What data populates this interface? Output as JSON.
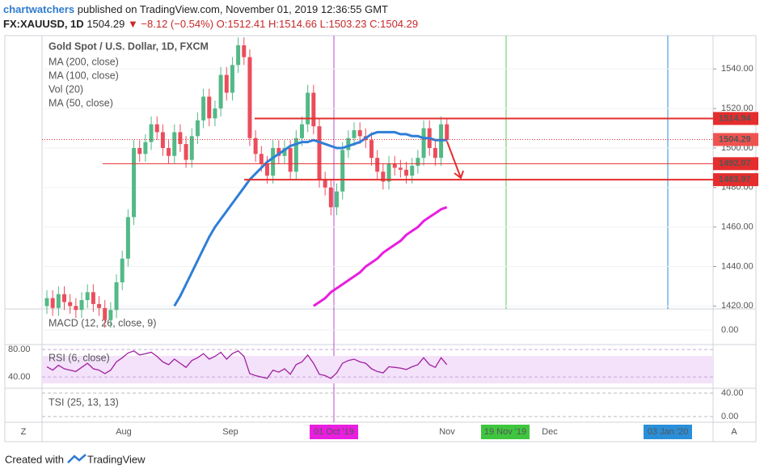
{
  "header": {
    "author": "chartwatchers",
    "published": "published on TradingView.com, November 01, 2019 12:36:55 GMT",
    "symbol": "FX:XAUUSD, 1D",
    "last": "1504.29",
    "change": "▼ −8.12 (−0.54%)",
    "ohlc": [
      "O:1512.41",
      "H:1514.66",
      "L:1503.23",
      "C:1504.29"
    ]
  },
  "legend": [
    "Gold Spot / U.S. Dollar, 1D, FXCM",
    "MA (200, close)",
    "MA (100, close)",
    "Vol (20)",
    "MA (50, close)"
  ],
  "chart_data": {
    "type": "candlestick",
    "open": [
      1420,
      1424,
      1419,
      1426,
      1422,
      1420,
      1418,
      1423,
      1427,
      1421,
      1419,
      1413,
      1418,
      1432,
      1444,
      1465,
      1500,
      1497,
      1503,
      1512,
      1508,
      1500,
      1496,
      1508,
      1502,
      1494,
      1506,
      1514,
      1526,
      1515,
      1520,
      1537,
      1528,
      1542,
      1552,
      1546,
      1505,
      1497,
      1492,
      1486,
      1500,
      1496,
      1500,
      1488,
      1505,
      1512,
      1528,
      1511,
      1484,
      1480,
      1470,
      1478,
      1499,
      1505,
      1509,
      1506,
      1504,
      1495,
      1488,
      1483,
      1492,
      1490,
      1489,
      1486,
      1491,
      1495,
      1510,
      1500,
      1495,
      1512
    ],
    "high": [
      1428,
      1428,
      1430,
      1430,
      1426,
      1424,
      1427,
      1431,
      1431,
      1425,
      1423,
      1422,
      1436,
      1448,
      1469,
      1504,
      1504,
      1507,
      1516,
      1516,
      1512,
      1504,
      1512,
      1512,
      1506,
      1510,
      1518,
      1530,
      1530,
      1524,
      1541,
      1541,
      1546,
      1556,
      1556,
      1550,
      1509,
      1501,
      1496,
      1504,
      1504,
      1504,
      1504,
      1509,
      1516,
      1532,
      1532,
      1515,
      1488,
      1484,
      1482,
      1503,
      1509,
      1513,
      1513,
      1510,
      1508,
      1499,
      1492,
      1496,
      1496,
      1494,
      1493,
      1495,
      1499,
      1514,
      1514,
      1504,
      1516,
      1515
    ],
    "low": [
      1416,
      1415,
      1415,
      1418,
      1416,
      1414,
      1414,
      1419,
      1417,
      1415,
      1409,
      1409,
      1414,
      1428,
      1440,
      1461,
      1493,
      1493,
      1499,
      1504,
      1496,
      1492,
      1492,
      1498,
      1490,
      1490,
      1502,
      1510,
      1511,
      1511,
      1516,
      1524,
      1524,
      1538,
      1542,
      1501,
      1493,
      1488,
      1482,
      1482,
      1492,
      1492,
      1484,
      1484,
      1501,
      1508,
      1507,
      1480,
      1476,
      1466,
      1466,
      1474,
      1495,
      1501,
      1502,
      1500,
      1491,
      1484,
      1479,
      1479,
      1486,
      1485,
      1482,
      1482,
      1487,
      1491,
      1496,
      1491,
      1491,
      1503
    ],
    "close": [
      1424,
      1419,
      1426,
      1422,
      1420,
      1418,
      1423,
      1427,
      1421,
      1419,
      1413,
      1418,
      1432,
      1444,
      1465,
      1500,
      1497,
      1503,
      1512,
      1508,
      1500,
      1496,
      1508,
      1502,
      1494,
      1506,
      1514,
      1526,
      1515,
      1520,
      1537,
      1528,
      1542,
      1552,
      1546,
      1505,
      1497,
      1492,
      1486,
      1500,
      1496,
      1500,
      1488,
      1505,
      1512,
      1528,
      1511,
      1484,
      1480,
      1470,
      1478,
      1499,
      1505,
      1509,
      1506,
      1504,
      1495,
      1488,
      1483,
      1492,
      1490,
      1489,
      1486,
      1491,
      1495,
      1510,
      1500,
      1495,
      1512,
      1504
    ],
    "up_color": "#53b987",
    "down_color": "#eb4d5c",
    "series": [
      {
        "name": "MA (50, close)",
        "color": "#2f7ed8",
        "values": [
          null,
          null,
          null,
          null,
          null,
          null,
          null,
          null,
          null,
          null,
          null,
          null,
          null,
          null,
          null,
          null,
          null,
          null,
          null,
          null,
          null,
          null,
          1420,
          1425,
          1431,
          1437,
          1443,
          1449,
          1455,
          1460,
          1464,
          1468,
          1472,
          1476,
          1480,
          1484,
          1487,
          1490,
          1493,
          1495,
          1497,
          1499,
          1501,
          1502,
          1503,
          1503,
          1504,
          1503,
          1502,
          1501,
          1500,
          1500,
          1501,
          1502,
          1503,
          1505,
          1507,
          1508,
          1508,
          1508,
          1508,
          1507,
          1507,
          1506,
          1506,
          1505,
          1505,
          1504,
          1504,
          1504
        ]
      },
      {
        "name": "MA (100, close)",
        "color": "#e91ee0",
        "values": [
          null,
          null,
          null,
          null,
          null,
          null,
          null,
          null,
          null,
          null,
          null,
          null,
          null,
          null,
          null,
          null,
          null,
          null,
          null,
          null,
          null,
          null,
          null,
          null,
          null,
          null,
          null,
          null,
          null,
          null,
          null,
          null,
          null,
          null,
          null,
          null,
          null,
          null,
          null,
          null,
          null,
          null,
          null,
          null,
          null,
          null,
          1420,
          1422,
          1424,
          1427,
          1429,
          1431,
          1433,
          1435,
          1437,
          1440,
          1442,
          1444,
          1447,
          1449,
          1451,
          1453,
          1456,
          1458,
          1460,
          1463,
          1465,
          1467,
          1469,
          1470
        ]
      }
    ],
    "ylim": [
      1418.5,
      1556.5
    ],
    "yticks": [
      {
        "value": 1420,
        "label": "1420.00"
      },
      {
        "value": 1440,
        "label": "1440.00"
      },
      {
        "value": 1460,
        "label": "1460.00"
      },
      {
        "value": 1480,
        "label": "1480.00"
      },
      {
        "value": 1500,
        "label": "1500.00"
      },
      {
        "value": 1520,
        "label": "1520.00"
      },
      {
        "value": 1540,
        "label": "1540.00"
      }
    ],
    "levels": [
      {
        "value": 1514.94,
        "label": "1514.94"
      },
      {
        "value": 1492.07,
        "label": "1492.07"
      },
      {
        "value": 1483.97,
        "label": "1483.97"
      }
    ],
    "last_price": {
      "value": 1504.29,
      "label": "1504.29"
    },
    "xticks": [
      "Aug",
      "Sep",
      "01 Oct '19",
      "Nov",
      "19 Nov '19",
      "Dec",
      "03 Jan '20"
    ],
    "rsi": {
      "name": "RSI (6, close)",
      "values": [
        55,
        50,
        57,
        52,
        50,
        48,
        54,
        60,
        52,
        50,
        45,
        50,
        62,
        68,
        75,
        78,
        72,
        74,
        76,
        70,
        62,
        58,
        66,
        60,
        54,
        64,
        68,
        74,
        66,
        70,
        76,
        66,
        74,
        78,
        70,
        45,
        42,
        40,
        38,
        50,
        47,
        52,
        44,
        58,
        62,
        72,
        60,
        44,
        42,
        38,
        46,
        60,
        64,
        66,
        62,
        60,
        52,
        48,
        46,
        55,
        54,
        53,
        51,
        55,
        58,
        68,
        58,
        54,
        68,
        58
      ],
      "ylim": [
        26,
        86
      ],
      "yticks": [
        {
          "value": 80,
          "label": "80.00"
        },
        {
          "value": 40,
          "label": "40.00"
        }
      ]
    },
    "macd": {
      "name": "MACD (12, 26, close, 9)",
      "ytick": {
        "value": 0,
        "label": "0.00"
      }
    },
    "tsi": {
      "name": "TSI (25, 13, 13)",
      "yticks": [
        {
          "value": 40,
          "label": "40.00"
        },
        {
          "value": 0,
          "label": "0.00"
        }
      ]
    }
  },
  "buttons": [
    "Z",
    "A"
  ],
  "footer": {
    "created": "Created with",
    "brand": "TradingView"
  }
}
